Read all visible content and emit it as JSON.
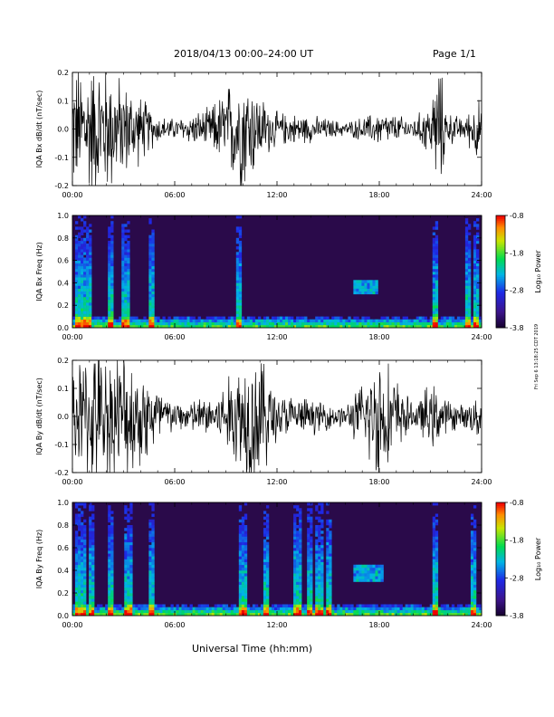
{
  "header": {
    "title": "2018/04/13  00:00–24:00 UT",
    "page": "Page 1/1"
  },
  "footer": {
    "xlabel": "Universal Time (hh:mm)",
    "stamp": "Fri Sep 6 13:18:25 CDT 2019"
  },
  "colors": {
    "background": "#ffffff",
    "trace": "#000000",
    "spectrogram_bg": "#2a0a4a"
  },
  "chart_data": [
    {
      "type": "line",
      "ylabel": "IQA Bx dB/dt (nT/sec)",
      "ylim": [
        -0.2,
        0.2
      ],
      "xlim": [
        0,
        24
      ],
      "yticks": [
        "0.2",
        "0.1",
        "0.0",
        "-0.1",
        "-0.2"
      ],
      "xticks": [
        "00:00",
        "06:00",
        "12:00",
        "18:00",
        "24:00"
      ],
      "amplitude_envelope": {
        "x_hours": [
          0,
          1,
          2,
          3,
          4,
          5,
          6,
          8,
          9,
          10,
          11,
          12,
          14,
          16,
          18,
          20,
          21,
          21.5,
          22,
          23,
          23.8,
          24
        ],
        "amp": [
          0.18,
          0.2,
          0.2,
          0.14,
          0.1,
          0.04,
          0.03,
          0.06,
          0.12,
          0.2,
          0.1,
          0.05,
          0.04,
          0.02,
          0.05,
          0.03,
          0.08,
          0.2,
          0.05,
          0.03,
          0.1,
          0.04
        ]
      }
    },
    {
      "type": "heatmap",
      "ylabel": "IQA Bx Freq (Hz)",
      "ylim": [
        0,
        1.0
      ],
      "xlim": [
        0,
        24
      ],
      "yticks": [
        "1.0",
        "0.8",
        "0.6",
        "0.4",
        "0.2",
        "0.0"
      ],
      "xticks": [
        "00:00",
        "06:00",
        "12:00",
        "18:00",
        "24:00"
      ],
      "colorbar": {
        "label": "Log₁₀ Power",
        "ticks": [
          "-0.8",
          "-1.8",
          "-2.8",
          "-3.8"
        ],
        "range": [
          -3.8,
          -0.8
        ]
      },
      "features": {
        "low_band_hours": [
          [
            0,
            24
          ]
        ],
        "bright_streak_hours": [
          0.3,
          0.6,
          1.0,
          2.3,
          3.1,
          4.6,
          9.8,
          21.3,
          23.2,
          23.7
        ],
        "pc1_band": {
          "x_hours": [
            16.5,
            18
          ],
          "freq": [
            0.3,
            0.42
          ]
        }
      }
    },
    {
      "type": "line",
      "ylabel": "IQA By dB/dt (nT/sec)",
      "ylim": [
        -0.2,
        0.2
      ],
      "xlim": [
        0,
        24
      ],
      "yticks": [
        "0.2",
        "0.1",
        "0.0",
        "-0.1",
        "-0.2"
      ],
      "xticks": [
        "00:00",
        "06:00",
        "12:00",
        "18:00",
        "24:00"
      ],
      "amplitude_envelope": {
        "x_hours": [
          0,
          1,
          2,
          3,
          4,
          5,
          6,
          8,
          9,
          10,
          11,
          12,
          14,
          16,
          17,
          18,
          20,
          21,
          22,
          23,
          23.8,
          24
        ],
        "amp": [
          0.15,
          0.2,
          0.2,
          0.2,
          0.15,
          0.1,
          0.04,
          0.06,
          0.1,
          0.2,
          0.2,
          0.07,
          0.05,
          0.03,
          0.1,
          0.2,
          0.03,
          0.1,
          0.05,
          0.03,
          0.08,
          0.04
        ]
      }
    },
    {
      "type": "heatmap",
      "ylabel": "IQA By Freq (Hz)",
      "ylim": [
        0,
        1.0
      ],
      "xlim": [
        0,
        24
      ],
      "yticks": [
        "1.0",
        "0.8",
        "0.6",
        "0.4",
        "0.2",
        "0.0"
      ],
      "xticks": [
        "00:00",
        "06:00",
        "12:00",
        "18:00",
        "24:00"
      ],
      "colorbar": {
        "label": "Log₁₀ Power",
        "ticks": [
          "-0.8",
          "-1.8",
          "-2.8",
          "-3.8"
        ],
        "range": [
          -3.8,
          -0.8
        ]
      },
      "features": {
        "low_band_hours": [
          [
            0,
            24
          ]
        ],
        "bright_streak_hours": [
          0.3,
          0.6,
          1.1,
          2.3,
          3.3,
          4.6,
          10,
          11.4,
          13.2,
          13.9,
          14.5,
          15,
          21.3,
          23.5
        ],
        "pc1_band": {
          "x_hours": [
            16.5,
            18.3
          ],
          "freq": [
            0.3,
            0.45
          ]
        }
      }
    }
  ]
}
